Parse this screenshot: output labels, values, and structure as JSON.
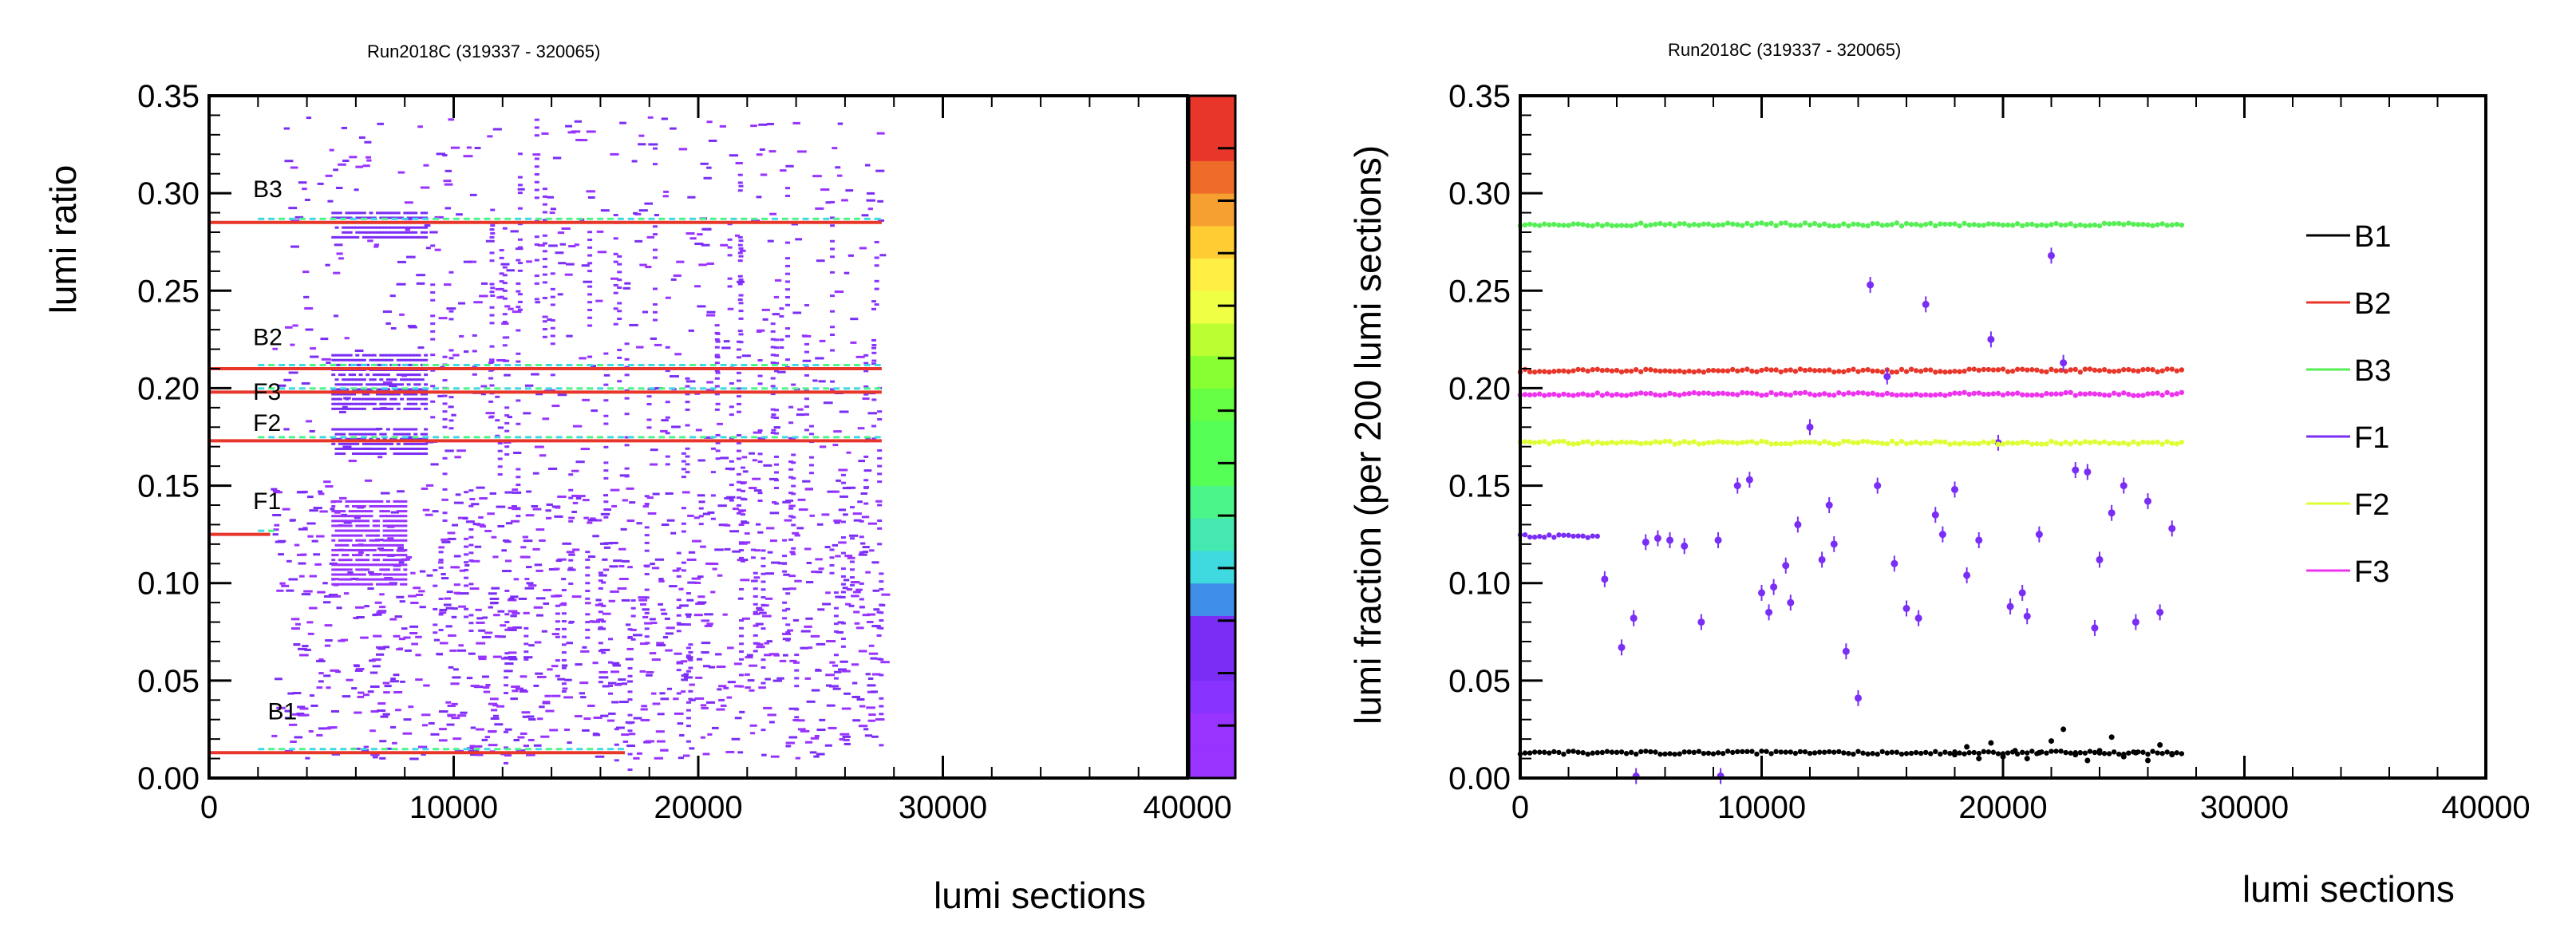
{
  "chart_data": [
    {
      "type": "heatmap",
      "title": "Run2018C (319337 - 320065)",
      "xlabel": "lumi sections",
      "ylabel": "lumi ratio",
      "xlim": [
        0,
        40000
      ],
      "ylim": [
        0,
        0.35
      ],
      "x_ticks": [
        "0",
        "10000",
        "20000",
        "30000",
        "40000"
      ],
      "y_ticks": [
        "0.00",
        "0.05",
        "0.10",
        "0.15",
        "0.20",
        "0.25",
        "0.30",
        "0.35"
      ],
      "grid": false,
      "colorbar": {
        "position": "right",
        "colors": [
          "#9933ff",
          "#9933ff",
          "#8833ff",
          "#7a2df5",
          "#7a2df5",
          "#3f8fe8",
          "#3fd9e0",
          "#44e8b0",
          "#4cf58a",
          "#55ff55",
          "#55ff55",
          "#66ff44",
          "#88ff33",
          "#bbff33",
          "#eeff44",
          "#ffee44",
          "#ffcc33",
          "#f5a030",
          "#ef6b2a",
          "#e8362a",
          "#e8362a"
        ]
      },
      "annotations": [
        {
          "text": "B3",
          "x": 1800,
          "y": 0.298
        },
        {
          "text": "B2",
          "x": 1800,
          "y": 0.222
        },
        {
          "text": "F3",
          "x": 1800,
          "y": 0.194
        },
        {
          "text": "F2",
          "x": 1800,
          "y": 0.178
        },
        {
          "text": "F1",
          "x": 1800,
          "y": 0.138
        },
        {
          "text": "B1",
          "x": 2400,
          "y": 0.03
        }
      ],
      "bands": [
        {
          "name": "B3",
          "y": 0.285,
          "x_end": 27500,
          "color": "#e8362a"
        },
        {
          "name": "B2",
          "y": 0.21,
          "x_end": 27500,
          "color": "#e8362a"
        },
        {
          "name": "F3",
          "y": 0.198,
          "x_end": 27500,
          "color": "#e8362a"
        },
        {
          "name": "F2",
          "y": 0.173,
          "x_end": 27500,
          "color": "#e8362a"
        },
        {
          "name": "F1",
          "y": 0.125,
          "x_end": 2500,
          "color": "#e8362a"
        },
        {
          "name": "B1",
          "y": 0.013,
          "x_end": 17000,
          "color": "#e8362a"
        }
      ],
      "clusters": [
        {
          "x": [
            5000,
            8800
          ],
          "y": [
            0.278,
            0.293
          ],
          "color": "#7a2df5"
        },
        {
          "x": [
            5000,
            8800
          ],
          "y": [
            0.19,
            0.218
          ],
          "color": "#7a2df5"
        },
        {
          "x": [
            5000,
            8800
          ],
          "y": [
            0.167,
            0.18
          ],
          "color": "#7a2df5"
        },
        {
          "x": [
            5000,
            8000
          ],
          "y": [
            0.1,
            0.145
          ],
          "color": "#9933ff"
        }
      ]
    },
    {
      "type": "scatter",
      "title": "Run2018C (319337 - 320065)",
      "xlabel": "lumi sections",
      "ylabel": "lumi fraction (per 200 lumi sections)",
      "xlim": [
        0,
        40000
      ],
      "ylim": [
        0,
        0.35
      ],
      "x_ticks": [
        "0",
        "10000",
        "20000",
        "30000",
        "40000"
      ],
      "y_ticks": [
        "0.00",
        "0.05",
        "0.10",
        "0.15",
        "0.20",
        "0.25",
        "0.30",
        "0.35"
      ],
      "grid": false,
      "legend_position": "right",
      "series": [
        {
          "name": "B1",
          "color": "#000000",
          "level": 0.013,
          "x_end": 27500
        },
        {
          "name": "B2",
          "color": "#e8362a",
          "level": 0.209,
          "x_end": 27500
        },
        {
          "name": "B3",
          "color": "#55ee55",
          "level": 0.284,
          "x_end": 27500
        },
        {
          "name": "F1",
          "color": "#7a2df5",
          "level": 0.124,
          "x_end": 3200,
          "scatter": [
            [
              3500,
              0.102
            ],
            [
              4200,
              0.067
            ],
            [
              4700,
              0.082
            ],
            [
              5200,
              0.121
            ],
            [
              5700,
              0.123
            ],
            [
              6200,
              0.122
            ],
            [
              6800,
              0.119
            ],
            [
              7500,
              0.08
            ],
            [
              8200,
              0.122
            ],
            [
              9000,
              0.15
            ],
            [
              9500,
              0.153
            ],
            [
              10000,
              0.095
            ],
            [
              10500,
              0.098
            ],
            [
              11000,
              0.109
            ],
            [
              11500,
              0.13
            ],
            [
              12000,
              0.18
            ],
            [
              12500,
              0.112
            ],
            [
              13000,
              0.12
            ],
            [
              13500,
              0.065
            ],
            [
              14000,
              0.041
            ],
            [
              14500,
              0.253
            ],
            [
              14800,
              0.15
            ],
            [
              15200,
              0.206
            ],
            [
              15500,
              0.11
            ],
            [
              16000,
              0.087
            ],
            [
              16500,
              0.082
            ],
            [
              16800,
              0.243
            ],
            [
              17500,
              0.125
            ],
            [
              18000,
              0.148
            ],
            [
              18500,
              0.104
            ],
            [
              19000,
              0.122
            ],
            [
              19500,
              0.225
            ],
            [
              19800,
              0.172
            ],
            [
              20300,
              0.088
            ],
            [
              21000,
              0.083
            ],
            [
              21500,
              0.125
            ],
            [
              22000,
              0.268
            ],
            [
              22500,
              0.213
            ],
            [
              23000,
              0.158
            ],
            [
              23500,
              0.157
            ],
            [
              24000,
              0.112
            ],
            [
              24500,
              0.136
            ],
            [
              25000,
              0.15
            ],
            [
              25500,
              0.08
            ],
            [
              26000,
              0.142
            ],
            [
              26500,
              0.085
            ],
            [
              27000,
              0.128
            ],
            [
              23800,
              0.077
            ],
            [
              20800,
              0.095
            ],
            [
              17200,
              0.135
            ],
            [
              12800,
              0.14
            ],
            [
              11200,
              0.09
            ],
            [
              10300,
              0.085
            ],
            [
              4800,
              0.001
            ],
            [
              8300,
              0.001
            ]
          ]
        },
        {
          "name": "F2",
          "color": "#ddff33",
          "level": 0.172,
          "x_end": 27500
        },
        {
          "name": "F3",
          "color": "#ee33ee",
          "level": 0.197,
          "x_end": 27500
        }
      ],
      "b1_scatter": [
        [
          18000,
          0.012
        ],
        [
          18500,
          0.016
        ],
        [
          19000,
          0.01
        ],
        [
          19500,
          0.018
        ],
        [
          20000,
          0.011
        ],
        [
          20500,
          0.014
        ],
        [
          21000,
          0.01
        ],
        [
          21500,
          0.013
        ],
        [
          22000,
          0.019
        ],
        [
          22500,
          0.025
        ],
        [
          23000,
          0.012
        ],
        [
          23500,
          0.009
        ],
        [
          24000,
          0.014
        ],
        [
          24500,
          0.021
        ],
        [
          25000,
          0.011
        ],
        [
          25500,
          0.013
        ],
        [
          26000,
          0.009
        ],
        [
          26500,
          0.017
        ],
        [
          27000,
          0.012
        ]
      ]
    }
  ]
}
